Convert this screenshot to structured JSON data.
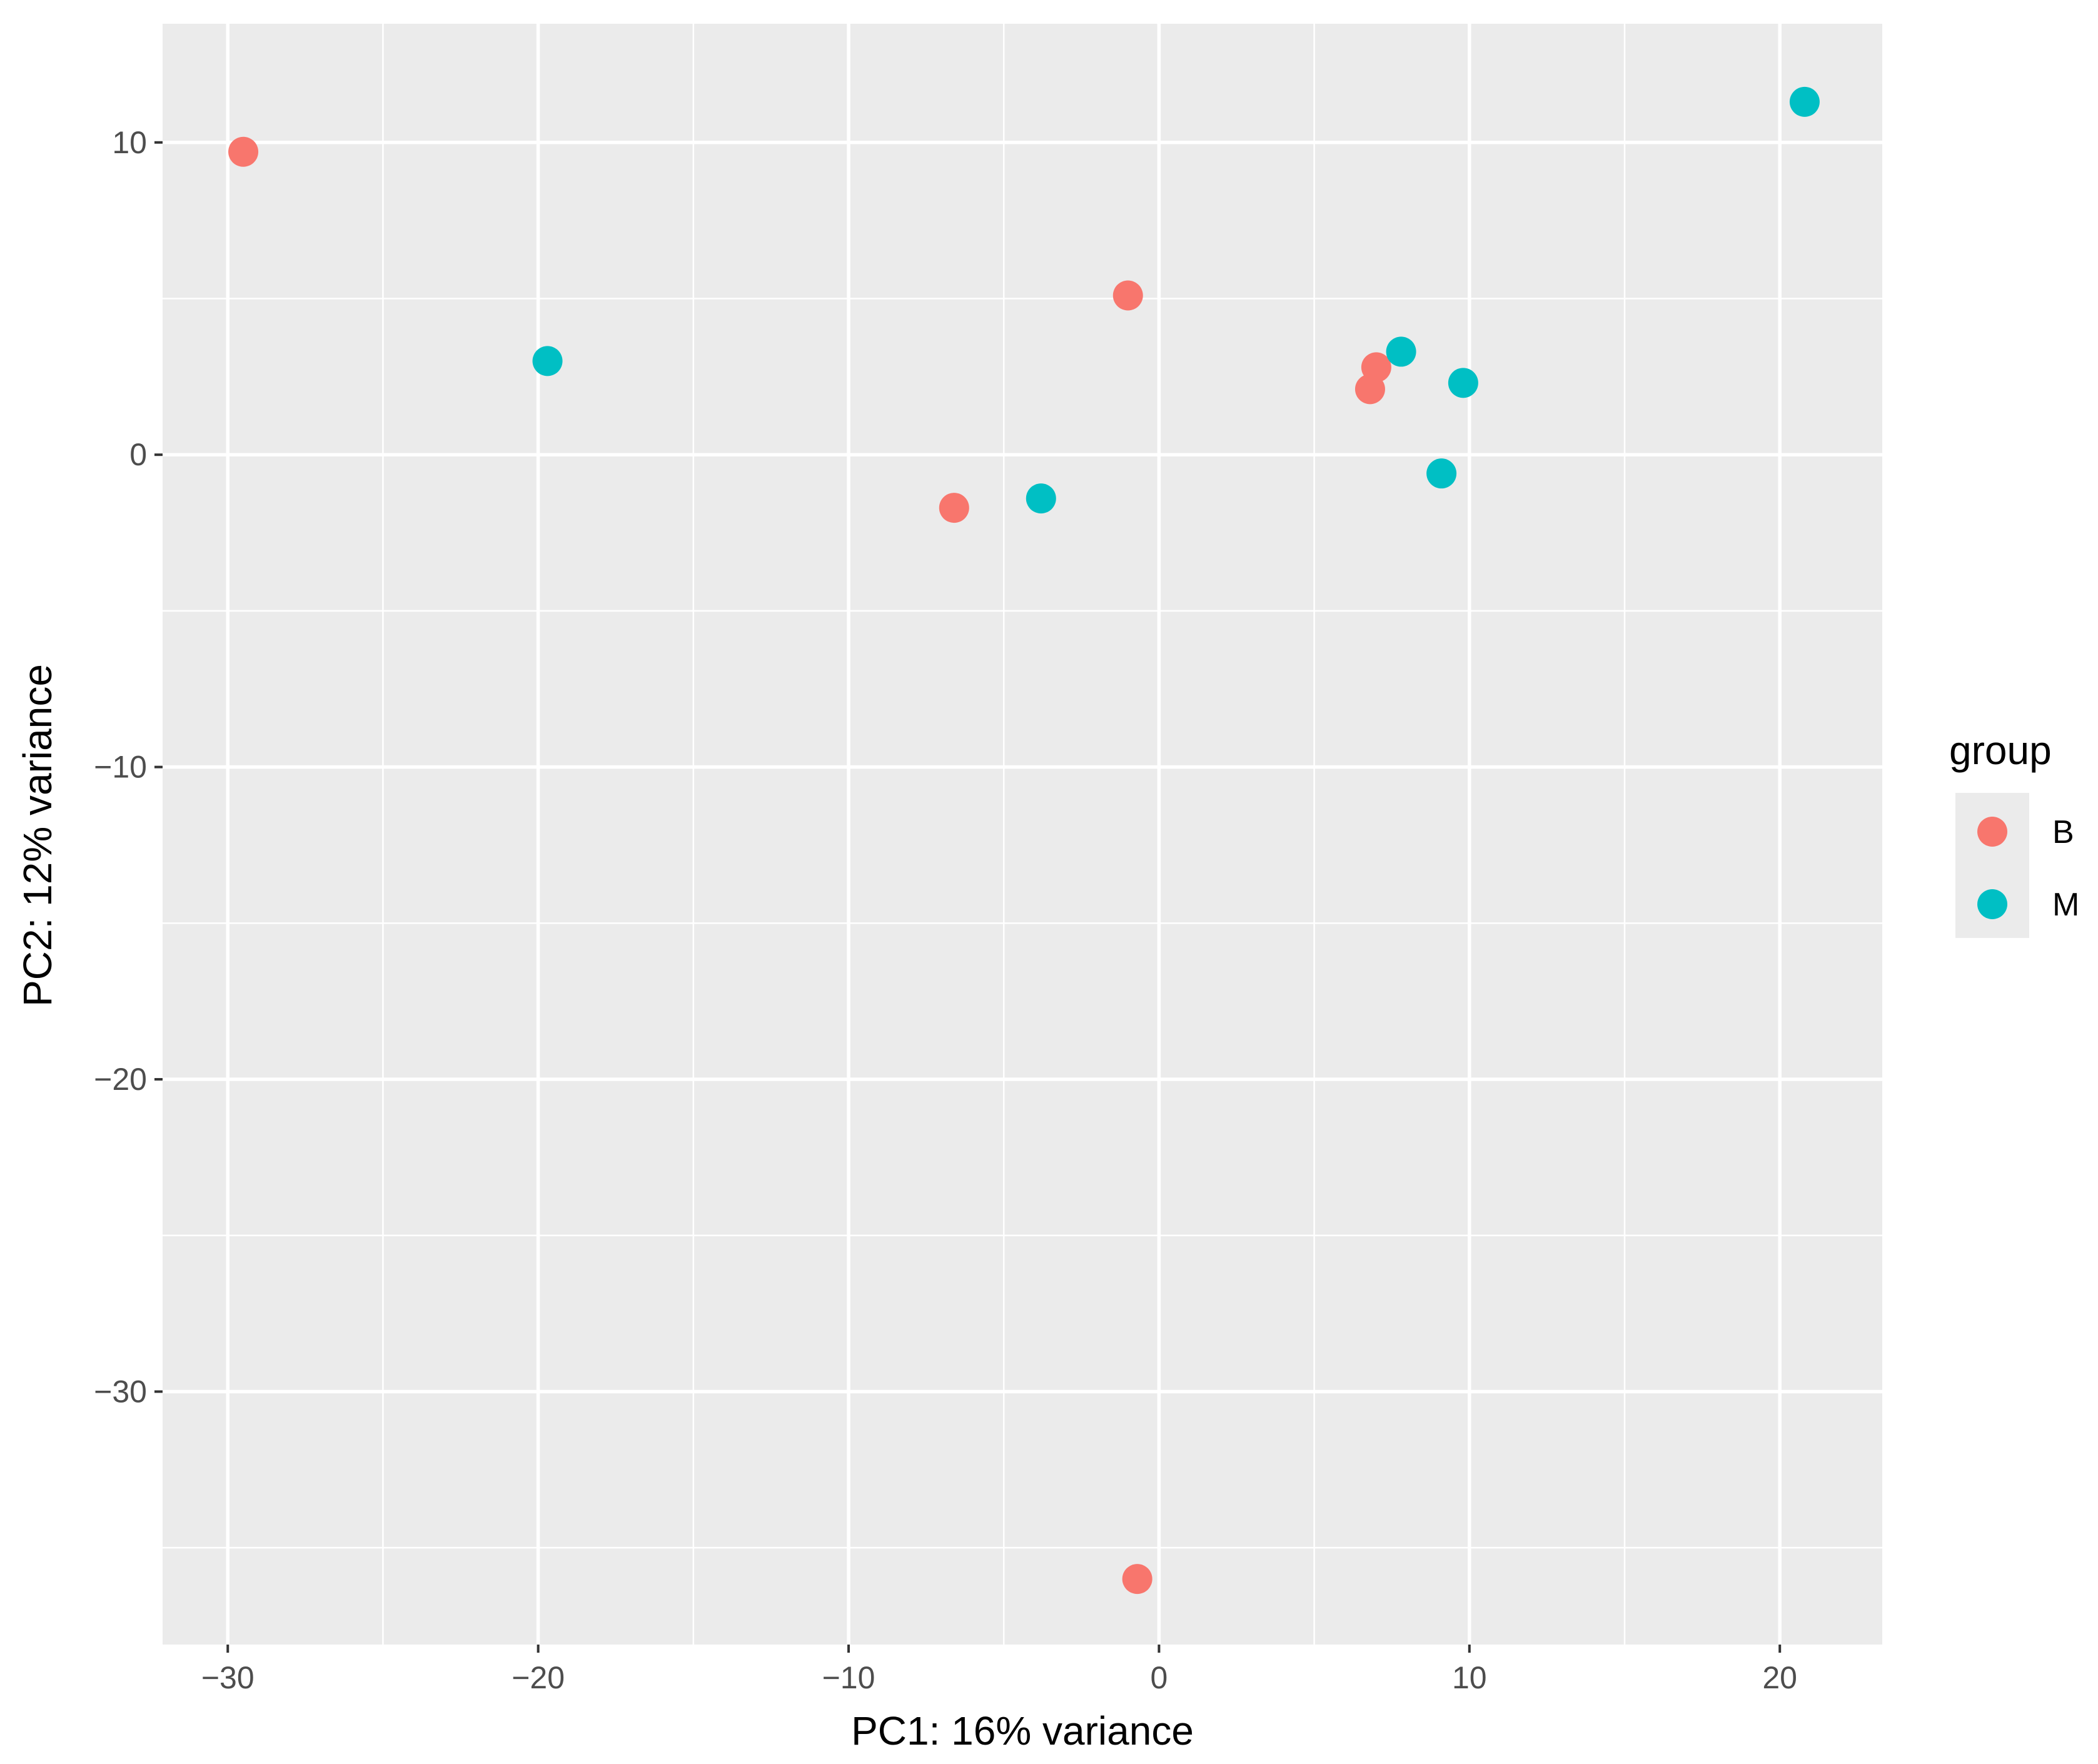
{
  "chart_data": {
    "type": "scatter",
    "title": "",
    "xlabel": "PC1: 16% variance",
    "ylabel": "PC2: 12% variance",
    "xlim": [
      -32.1,
      23.3
    ],
    "ylim": [
      -38.1,
      13.8
    ],
    "x_ticks": [
      -30,
      -20,
      -10,
      0,
      10,
      20
    ],
    "x_tick_labels": [
      "−30",
      "−20",
      "−10",
      "0",
      "10",
      "20"
    ],
    "y_ticks": [
      10,
      0,
      -10,
      -20,
      -30
    ],
    "y_tick_labels": [
      "10",
      "0",
      "−10",
      "−20",
      "−30"
    ],
    "grid": true,
    "legend_position": "right",
    "legend_title": "group",
    "series": [
      {
        "name": "B",
        "color": "#F8766D",
        "points": [
          {
            "x": -29.5,
            "y": 9.7
          },
          {
            "x": -1.0,
            "y": 5.1
          },
          {
            "x": 7.0,
            "y": 2.8
          },
          {
            "x": 6.8,
            "y": 2.1
          },
          {
            "x": -6.6,
            "y": -1.7
          },
          {
            "x": -0.7,
            "y": -36.0
          }
        ]
      },
      {
        "name": "M",
        "color": "#00BFC4",
        "points": [
          {
            "x": 20.8,
            "y": 11.3
          },
          {
            "x": -19.7,
            "y": 3.0
          },
          {
            "x": 7.8,
            "y": 3.3
          },
          {
            "x": 9.8,
            "y": 2.3
          },
          {
            "x": -3.8,
            "y": -1.4
          },
          {
            "x": 9.1,
            "y": -0.6
          }
        ]
      }
    ]
  }
}
